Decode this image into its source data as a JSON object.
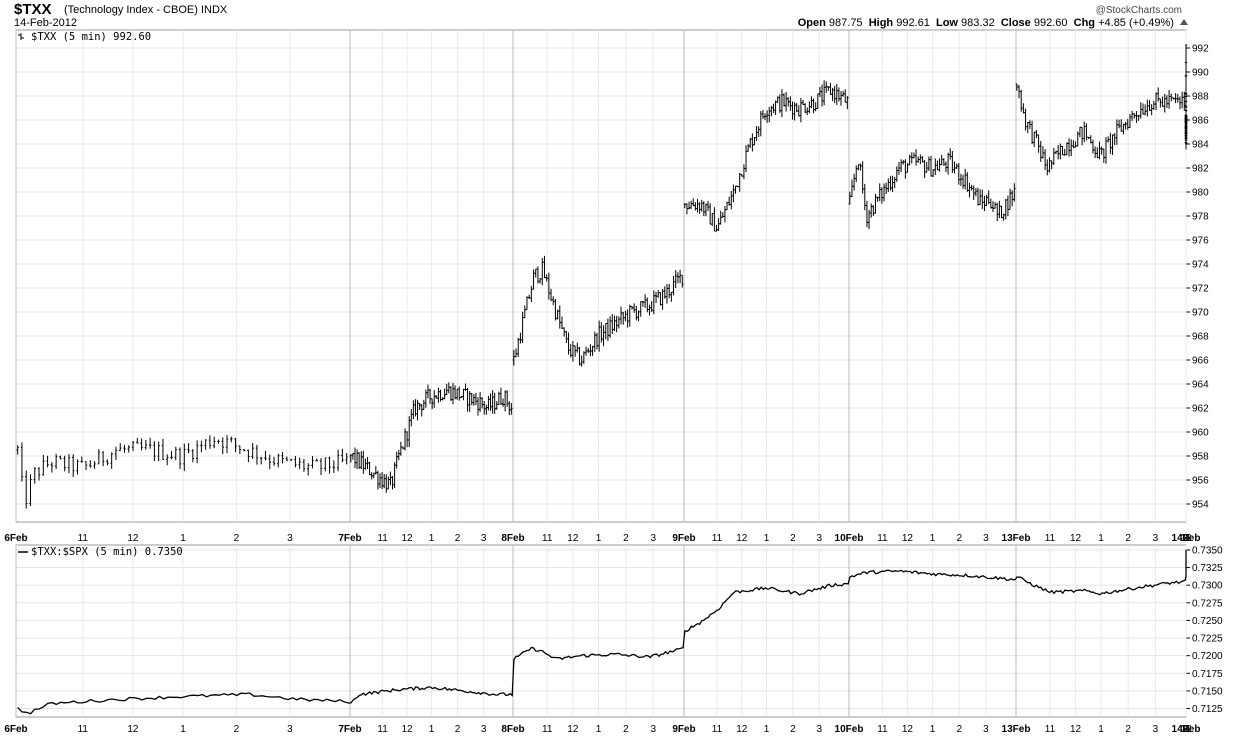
{
  "header": {
    "symbol": "$TXX",
    "full_name": "(Technology Index - CBOE) INDX",
    "date": "14-Feb-2012",
    "credit": "@StockCharts.com",
    "open_label": "Open",
    "open_value": "987.75",
    "high_label": "High",
    "high_value": "992.61",
    "low_label": "Low",
    "low_value": "983.32",
    "close_label": "Close",
    "close_value": "992.60",
    "chg_label": "Chg",
    "chg_value": "+4.85 (+0.49%)",
    "chg_icon": "up-triangle-icon"
  },
  "chart_data": [
    {
      "type": "ohlc",
      "legend": "$TXX (5 min) 992.60",
      "x_ticks": [
        "6Feb",
        "11",
        "12",
        "1",
        "2",
        "3",
        "7Feb",
        "11",
        "12",
        "1",
        "2",
        "3",
        "8Feb",
        "11",
        "12",
        "1",
        "2",
        "3",
        "9Feb",
        "11",
        "12",
        "1",
        "2",
        "3",
        "10Feb",
        "11",
        "12",
        "1",
        "2",
        "3",
        "13Feb",
        "11",
        "12",
        "1",
        "2",
        "3",
        "14Feb",
        "11",
        "12",
        "1",
        "2",
        "3"
      ],
      "y_ticks": [
        "992",
        "990",
        "988",
        "986",
        "984",
        "982",
        "980",
        "978",
        "976",
        "974",
        "972",
        "970",
        "968",
        "966",
        "964",
        "962",
        "960",
        "958",
        "956",
        "954"
      ],
      "ylim": [
        952.5,
        993.5
      ],
      "days": [
        {
          "label": "6Feb",
          "anchors": [
            [
              0,
              958.5
            ],
            [
              0.02,
              954
            ],
            [
              0.05,
              956.5
            ],
            [
              0.1,
              957.5
            ],
            [
              0.2,
              957
            ],
            [
              0.3,
              958.5
            ],
            [
              0.4,
              958.5
            ],
            [
              0.5,
              958
            ],
            [
              0.6,
              959.5
            ],
            [
              0.7,
              958.5
            ],
            [
              0.8,
              957.5
            ],
            [
              0.9,
              957
            ],
            [
              1,
              957.5
            ]
          ]
        },
        {
          "label": "7Feb",
          "anchors": [
            [
              0,
              958
            ],
            [
              0.1,
              957
            ],
            [
              0.2,
              956
            ],
            [
              0.25,
              955.5
            ],
            [
              0.3,
              958
            ],
            [
              0.35,
              960
            ],
            [
              0.4,
              962
            ],
            [
              0.5,
              963
            ],
            [
              0.6,
              963.5
            ],
            [
              0.7,
              963
            ],
            [
              0.8,
              962.5
            ],
            [
              0.85,
              962
            ],
            [
              0.95,
              963
            ],
            [
              1,
              962
            ]
          ]
        },
        {
          "label": "8Feb",
          "anchors": [
            [
              0,
              966
            ],
            [
              0.05,
              969
            ],
            [
              0.12,
              973
            ],
            [
              0.17,
              973.5
            ],
            [
              0.25,
              970
            ],
            [
              0.32,
              967
            ],
            [
              0.4,
              966
            ],
            [
              0.5,
              968
            ],
            [
              0.6,
              969
            ],
            [
              0.7,
              970
            ],
            [
              0.8,
              970.5
            ],
            [
              0.9,
              971.5
            ],
            [
              1,
              973
            ]
          ]
        },
        {
          "label": "9Feb",
          "anchors": [
            [
              0,
              979
            ],
            [
              0.1,
              979
            ],
            [
              0.2,
              977
            ],
            [
              0.3,
              980
            ],
            [
              0.4,
              984
            ],
            [
              0.5,
              987
            ],
            [
              0.6,
              987.5
            ],
            [
              0.7,
              987
            ],
            [
              0.8,
              987.5
            ],
            [
              0.9,
              988.5
            ],
            [
              1,
              987.5
            ]
          ]
        },
        {
          "label": "10Feb",
          "anchors": [
            [
              0,
              979
            ],
            [
              0.05,
              983
            ],
            [
              0.1,
              978
            ],
            [
              0.2,
              980
            ],
            [
              0.3,
              982
            ],
            [
              0.4,
              982.5
            ],
            [
              0.5,
              982
            ],
            [
              0.6,
              982.5
            ],
            [
              0.7,
              981
            ],
            [
              0.8,
              979
            ],
            [
              0.85,
              979.5
            ],
            [
              0.9,
              978
            ],
            [
              1,
              980
            ]
          ]
        },
        {
          "label": "13Feb",
          "anchors": [
            [
              0,
              989
            ],
            [
              0.05,
              986
            ],
            [
              0.12,
              984
            ],
            [
              0.18,
              982
            ],
            [
              0.3,
              984
            ],
            [
              0.4,
              985
            ],
            [
              0.5,
              983
            ],
            [
              0.6,
              985
            ],
            [
              0.7,
              986.5
            ],
            [
              0.8,
              987.5
            ],
            [
              0.9,
              987.5
            ],
            [
              1,
              987.5
            ]
          ]
        },
        {
          "label": "14Feb",
          "anchors": [
            [
              0,
              987.5
            ],
            [
              0.1,
              985
            ],
            [
              0.2,
              986
            ],
            [
              0.3,
              986.5
            ],
            [
              0.4,
              985
            ],
            [
              0.5,
              984.5
            ],
            [
              0.6,
              985.5
            ],
            [
              0.7,
              986
            ],
            [
              0.8,
              984.5
            ],
            [
              0.9,
              986.5
            ],
            [
              0.95,
              988
            ],
            [
              1,
              992.6
            ]
          ]
        }
      ],
      "reference_level": 987.75
    },
    {
      "type": "line",
      "legend": "$TXX:$SPX (5 min) 0.7350",
      "x_ticks": [
        "6Feb",
        "11",
        "12",
        "1",
        "2",
        "3",
        "7Feb",
        "11",
        "12",
        "1",
        "2",
        "3",
        "8Feb",
        "11",
        "12",
        "1",
        "2",
        "3",
        "9Feb",
        "11",
        "12",
        "1",
        "2",
        "3",
        "10Feb",
        "11",
        "12",
        "1",
        "2",
        "3",
        "13Feb",
        "11",
        "12",
        "1",
        "2",
        "3",
        "14Feb",
        "11",
        "12",
        "1",
        "2",
        "3"
      ],
      "y_ticks": [
        "0.7350",
        "0.7325",
        "0.7300",
        "0.7275",
        "0.7250",
        "0.7225",
        "0.7200",
        "0.7175",
        "0.7150",
        "0.7125"
      ],
      "ylim": [
        0.7113,
        0.7357
      ],
      "days": [
        {
          "label": "6Feb",
          "anchors": [
            [
              0,
              0.7125
            ],
            [
              0.03,
              0.7118
            ],
            [
              0.1,
              0.7132
            ],
            [
              0.3,
              0.7138
            ],
            [
              0.5,
              0.7142
            ],
            [
              0.7,
              0.7145
            ],
            [
              0.85,
              0.7138
            ],
            [
              1,
              0.7135
            ]
          ]
        },
        {
          "label": "7Feb",
          "anchors": [
            [
              0,
              0.7132
            ],
            [
              0.05,
              0.7145
            ],
            [
              0.3,
              0.7152
            ],
            [
              0.5,
              0.7155
            ],
            [
              0.7,
              0.715
            ],
            [
              0.9,
              0.7145
            ],
            [
              1,
              0.7145
            ]
          ]
        },
        {
          "label": "8Feb",
          "anchors": [
            [
              0,
              0.7195
            ],
            [
              0.1,
              0.721
            ],
            [
              0.15,
              0.7208
            ],
            [
              0.25,
              0.7195
            ],
            [
              0.4,
              0.72
            ],
            [
              0.6,
              0.7202
            ],
            [
              0.8,
              0.7198
            ],
            [
              1,
              0.721
            ]
          ]
        },
        {
          "label": "9Feb",
          "anchors": [
            [
              0,
              0.7235
            ],
            [
              0.1,
              0.7248
            ],
            [
              0.2,
              0.7265
            ],
            [
              0.3,
              0.729
            ],
            [
              0.5,
              0.7296
            ],
            [
              0.7,
              0.7288
            ],
            [
              0.9,
              0.73
            ],
            [
              1,
              0.7302
            ]
          ]
        },
        {
          "label": "10Feb",
          "anchors": [
            [
              0,
              0.7312
            ],
            [
              0.1,
              0.7318
            ],
            [
              0.3,
              0.732
            ],
            [
              0.5,
              0.7316
            ],
            [
              0.7,
              0.7314
            ],
            [
              0.9,
              0.731
            ],
            [
              1,
              0.7308
            ]
          ]
        },
        {
          "label": "13Feb",
          "anchors": [
            [
              0,
              0.7312
            ],
            [
              0.1,
              0.73
            ],
            [
              0.2,
              0.729
            ],
            [
              0.4,
              0.7292
            ],
            [
              0.5,
              0.7288
            ],
            [
              0.7,
              0.7296
            ],
            [
              0.9,
              0.7303
            ],
            [
              1,
              0.7305
            ]
          ]
        },
        {
          "label": "14Feb",
          "anchors": [
            [
              0,
              0.7312
            ],
            [
              0.2,
              0.732
            ],
            [
              0.4,
              0.7315
            ],
            [
              0.5,
              0.7312
            ],
            [
              0.7,
              0.7325
            ],
            [
              0.9,
              0.7335
            ],
            [
              1,
              0.7348
            ]
          ]
        }
      ],
      "reference_level": 0.7308
    }
  ]
}
